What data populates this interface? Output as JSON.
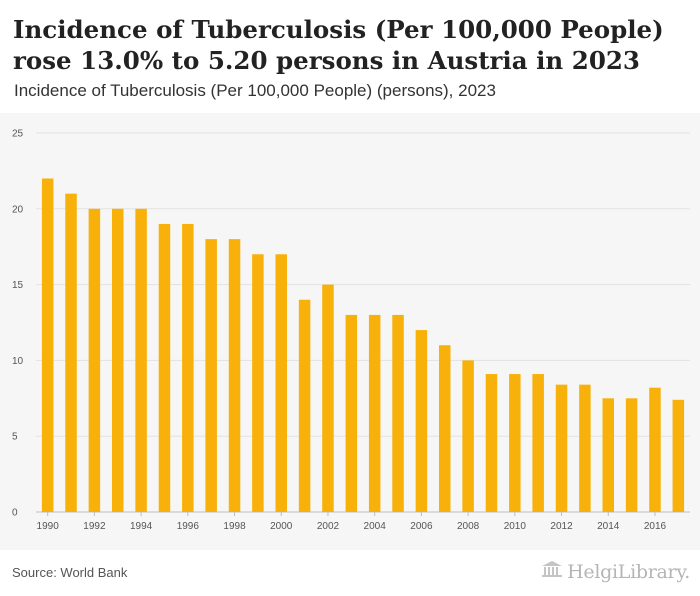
{
  "header": {
    "title": "Incidence of Tuberculosis (Per 100,000 People) rose 13.0% to 5.20 persons in Austria in 2023",
    "subtitle": "Incidence of Tuberculosis (Per 100,000 People) (persons), 2023"
  },
  "footer": {
    "source": "Source: World Bank",
    "brand": "HelgiLibrary.",
    "brand_icon": "library-columns-icon"
  },
  "colors": {
    "bar": "#f7b10a",
    "plot_background": "#f6f6f6"
  },
  "chart_data": {
    "type": "bar",
    "x": [
      1990,
      1991,
      1992,
      1993,
      1994,
      1995,
      1996,
      1997,
      1998,
      1999,
      2000,
      2001,
      2002,
      2003,
      2004,
      2005,
      2006,
      2007,
      2008,
      2009,
      2010,
      2011,
      2012,
      2013,
      2014,
      2015,
      2016,
      2017
    ],
    "values": [
      22,
      21,
      20,
      20,
      20,
      19,
      19,
      18,
      18,
      17,
      17,
      14,
      15,
      13,
      13,
      13,
      12,
      11,
      10,
      9.1,
      9.1,
      9.1,
      8.4,
      8.4,
      7.5,
      7.5,
      8.2,
      7.4
    ],
    "x_tick_labels": [
      "1990",
      "1992",
      "1994",
      "1996",
      "1998",
      "2000",
      "2002",
      "2004",
      "2006",
      "2008",
      "2010",
      "2012",
      "2014",
      "2016"
    ],
    "y_ticks": [
      0,
      5,
      10,
      15,
      20,
      25
    ],
    "ylim": [
      0,
      25
    ],
    "grid": true,
    "legend": "none"
  }
}
